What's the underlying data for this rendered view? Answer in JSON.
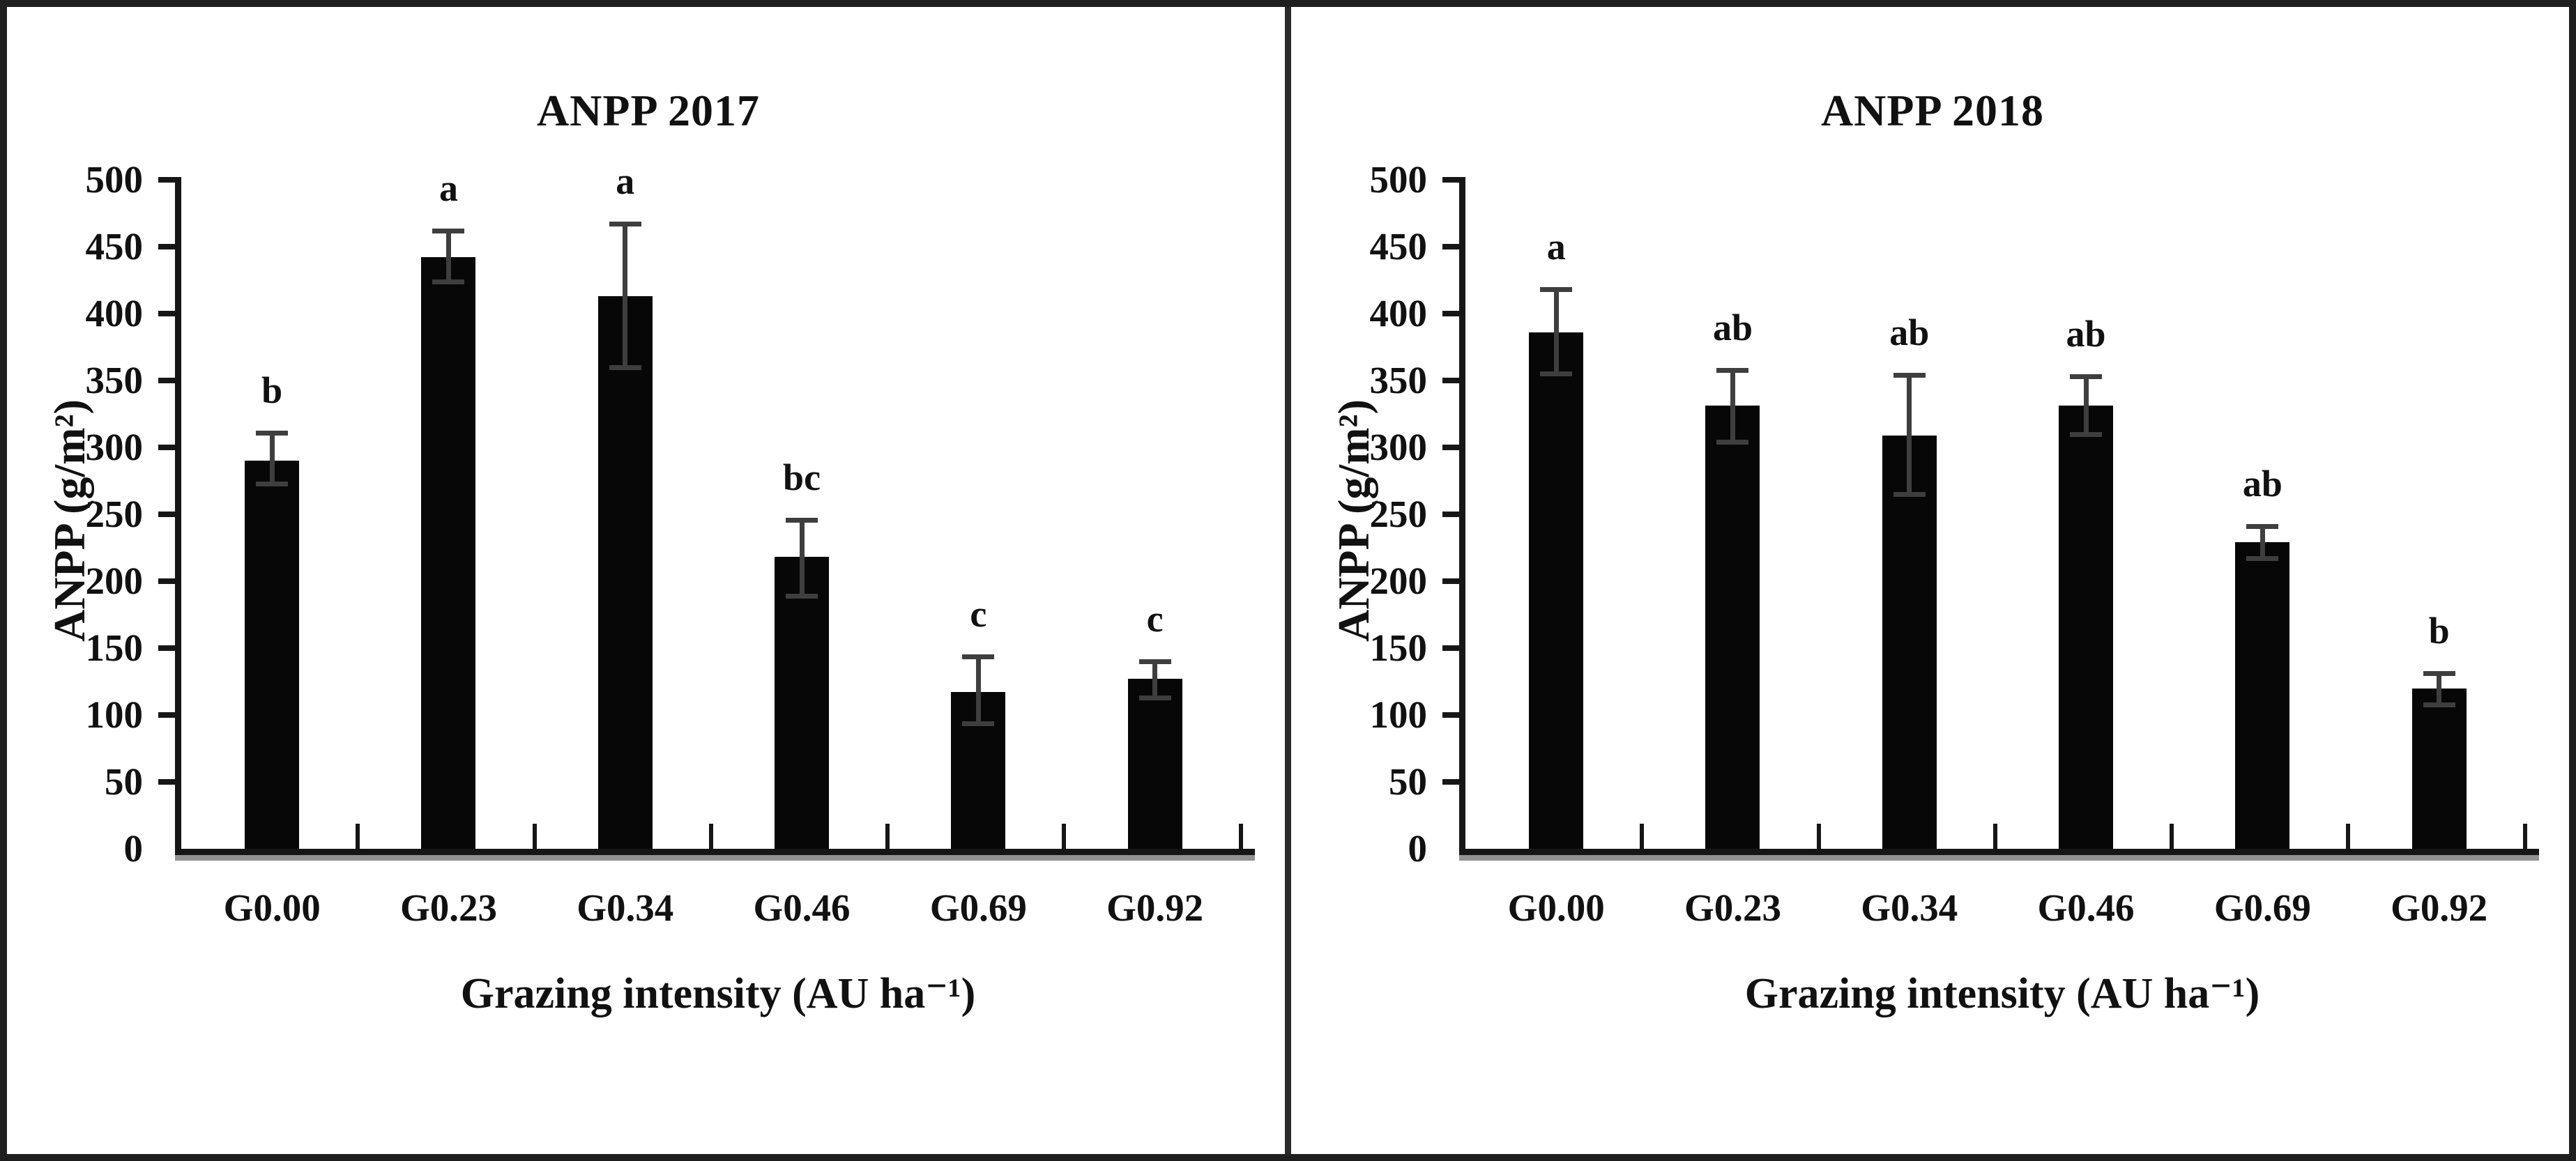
{
  "figure": {
    "border_color": "#1f1f1f",
    "divider_color": "#2a2a2a",
    "background_color": "#ffffff",
    "bar_color": "#070707",
    "error_bar_color": "#3e3e3e",
    "text_color": "#111111"
  },
  "chart_data": [
    {
      "type": "bar",
      "title": "ANPP 2017",
      "xlabel": "Grazing intensity (AU ha⁻¹)",
      "ylabel": "ANPP (g/m²)",
      "ylim": [
        0,
        500
      ],
      "ytick_step": 50,
      "grid": "off",
      "legend": "none",
      "categories": [
        "G0.00",
        "G0.23",
        "G0.34",
        "G0.46",
        "G0.69",
        "G0.92"
      ],
      "values": [
        290,
        442,
        413,
        218,
        117,
        127
      ],
      "errors_up": [
        21,
        20,
        54,
        28,
        27,
        13
      ],
      "errors_down": [
        17,
        18,
        53,
        29,
        23,
        14
      ],
      "sig_letters": [
        "b",
        "a",
        "a",
        "bc",
        "c",
        "c"
      ]
    },
    {
      "type": "bar",
      "title": "ANPP 2018",
      "xlabel": "Grazing intensity (AU ha⁻¹)",
      "ylabel": "ANPP (g/m²)",
      "ylim": [
        0,
        500
      ],
      "ytick_step": 50,
      "grid": "off",
      "legend": "none",
      "categories": [
        "G0.00",
        "G0.23",
        "G0.34",
        "G0.46",
        "G0.69",
        "G0.92"
      ],
      "values": [
        386,
        331,
        309,
        331,
        229,
        120
      ],
      "errors_up": [
        32,
        27,
        45,
        22,
        12,
        11
      ],
      "errors_down": [
        31,
        27,
        44,
        21,
        12,
        12
      ],
      "sig_letters": [
        "a",
        "ab",
        "ab",
        "ab",
        "ab",
        "b"
      ]
    }
  ]
}
